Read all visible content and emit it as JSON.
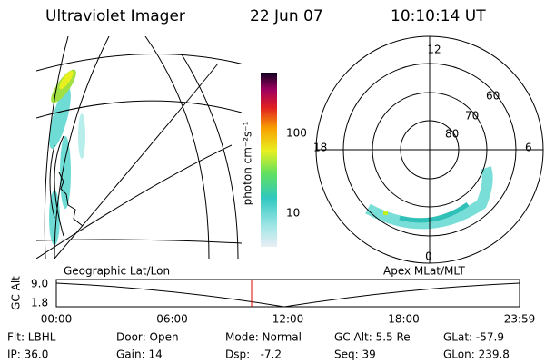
{
  "header": {
    "instrument": "Ultraviolet Imager",
    "date": "22 Jun 07",
    "time": "10:10:14 UT"
  },
  "colorbar": {
    "label": "photon cm⁻²s⁻¹",
    "ticks": [
      "100",
      "10"
    ]
  },
  "left_panel": {
    "caption": "Geographic Lat/Lon"
  },
  "right_panel": {
    "caption": "Apex MLat/MLT",
    "mlt_labels": [
      "12",
      "18",
      "6",
      "0"
    ],
    "mlat_labels": [
      "60",
      "70",
      "80"
    ]
  },
  "altitude_plot": {
    "axis_label": "GC Alt",
    "y_labels": [
      "9.0",
      "1.8"
    ],
    "x_labels": [
      "00:00",
      "06:00",
      "12:00",
      "18:00",
      "23:59"
    ]
  },
  "info": {
    "rows": [
      [
        "Flt: LBHL",
        "Door: Open",
        "Mode: Normal",
        "GC Alt: 5.5 Re",
        "GLat: -57.9"
      ],
      [
        "IP: 36.0",
        "Gain: 14",
        "Dsp:   -7.2",
        "Seq: 39",
        "GLon: 239.8"
      ]
    ]
  }
}
